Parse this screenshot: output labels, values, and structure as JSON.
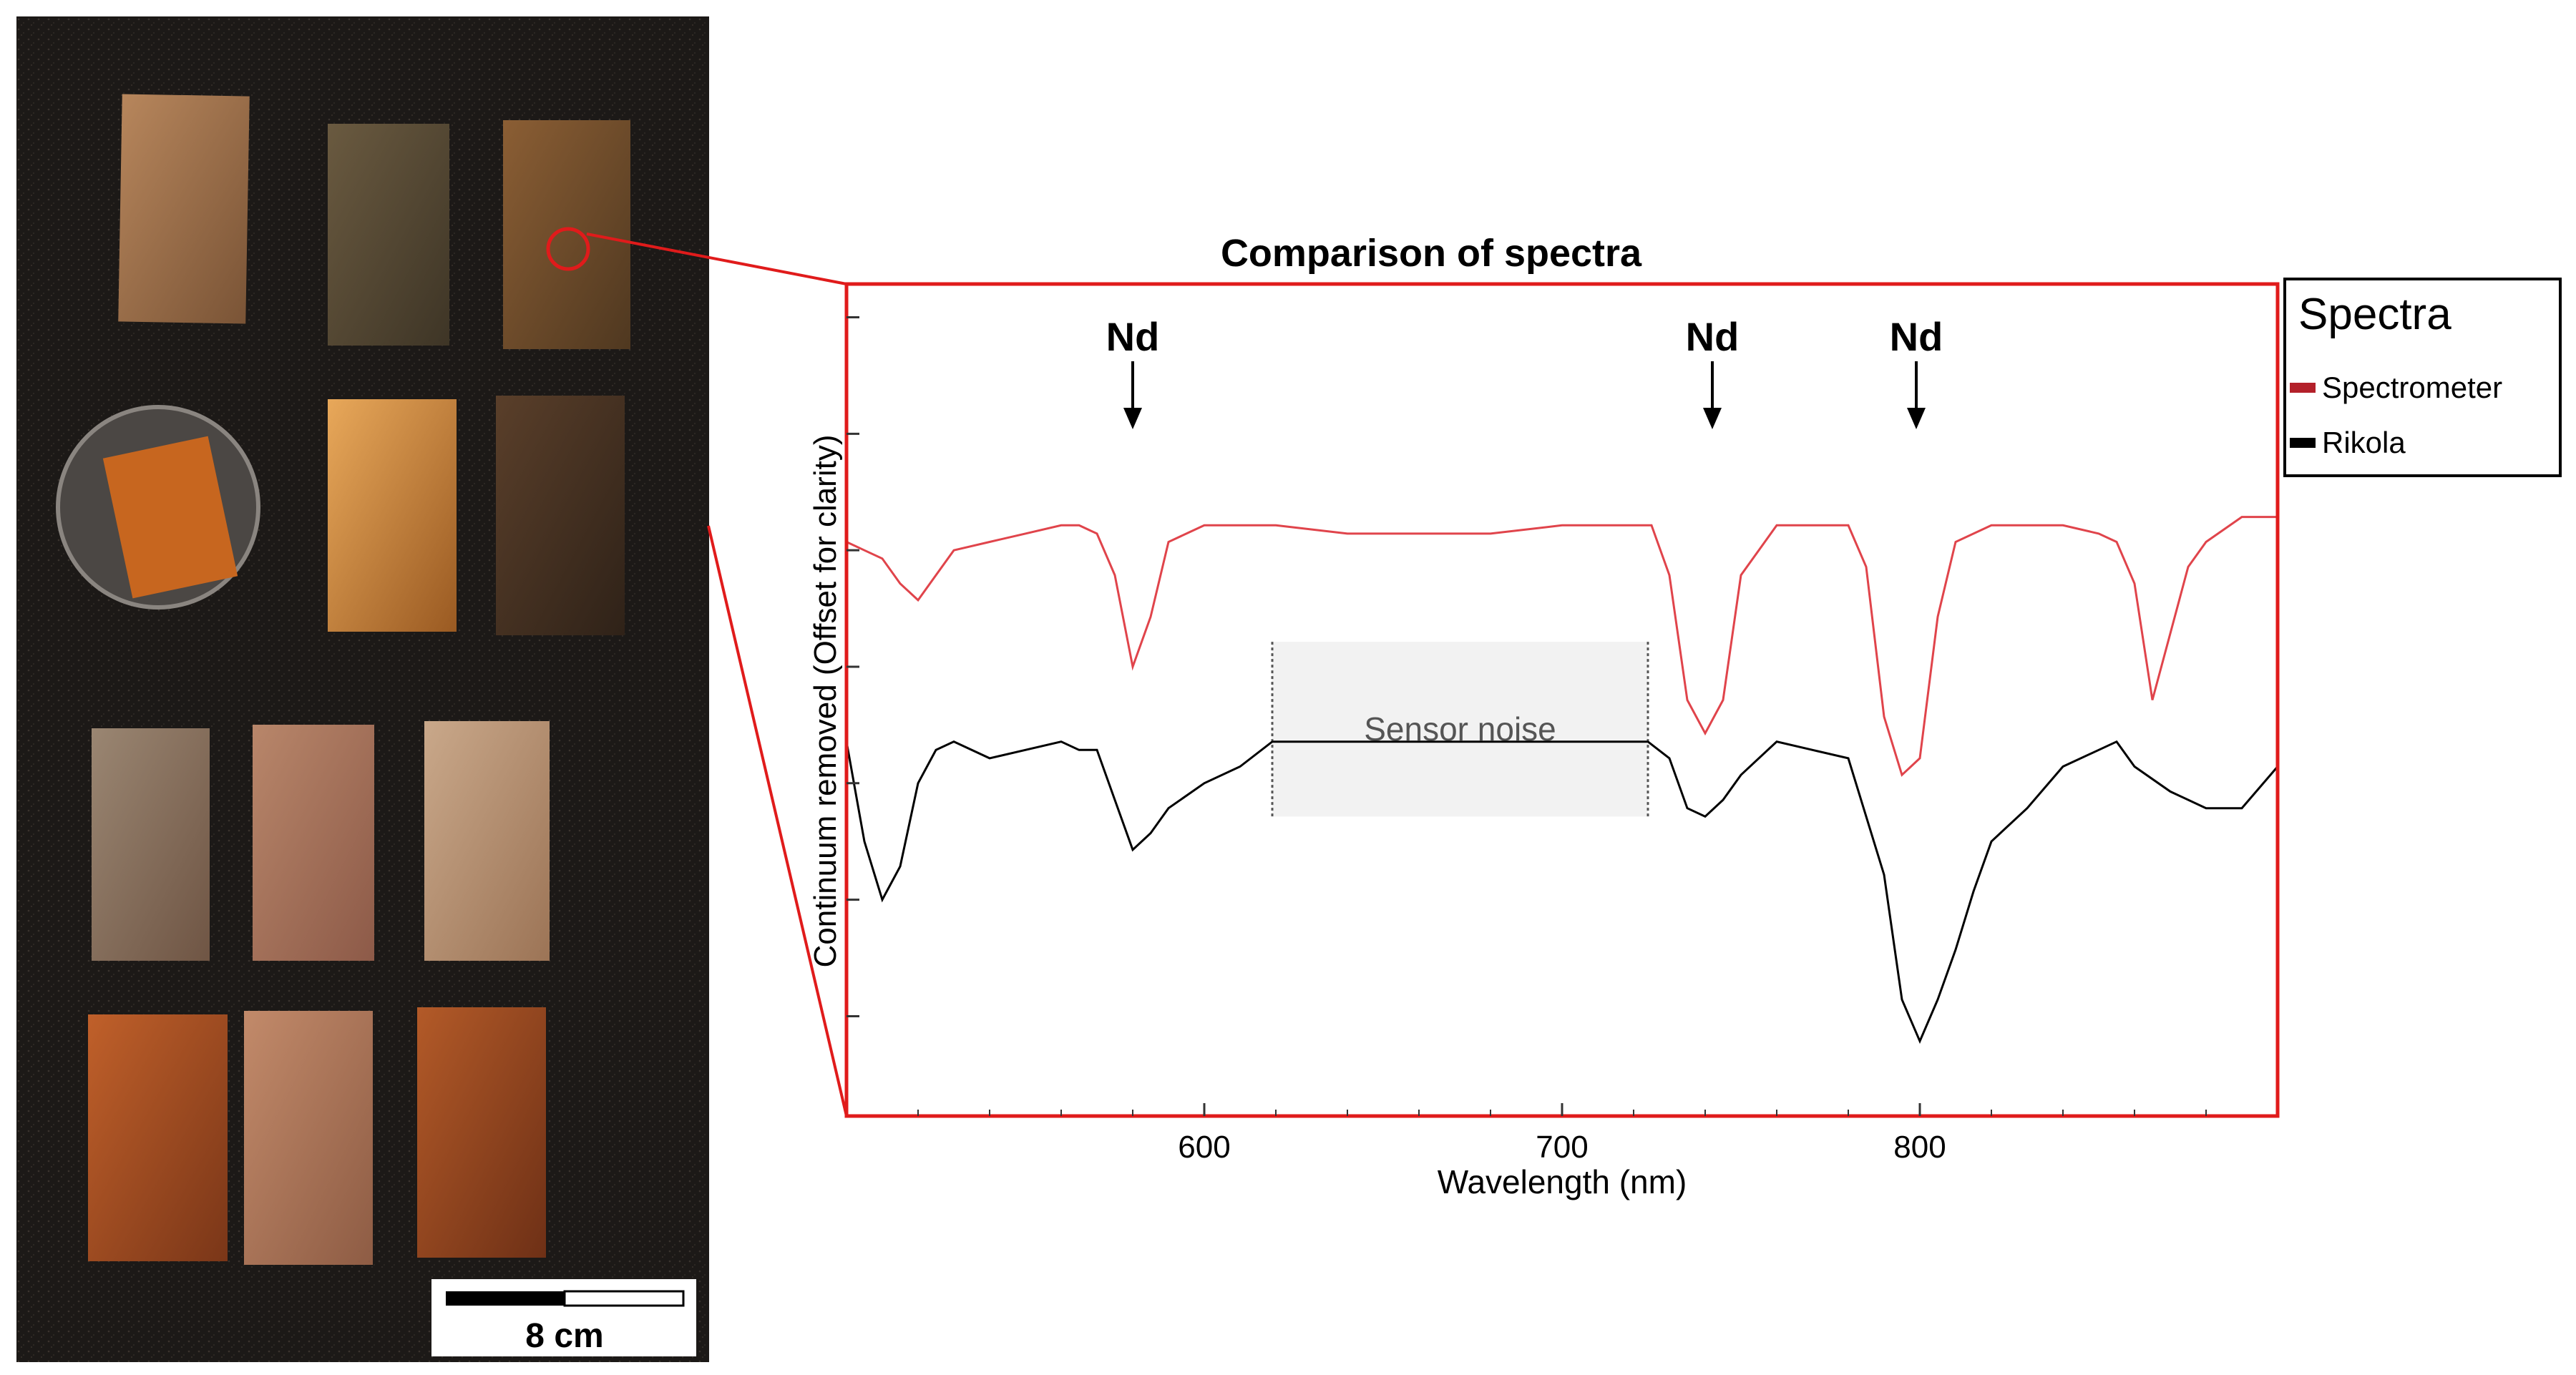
{
  "photo": {
    "scale_bar_label": "8 cm"
  },
  "chart_data": {
    "type": "line",
    "title": "Comparison of spectra",
    "xlabel": "Wavelength (nm)",
    "ylabel": "Continuum removed (Offset for clarity)",
    "xlim": [
      500,
      900
    ],
    "ylim": [
      0,
      1
    ],
    "xticks": [
      600,
      700,
      800
    ],
    "grid": false,
    "legend": {
      "title": "Spectra",
      "placement": "right",
      "entries": [
        {
          "label": "Spectrometer",
          "color": "#b3202a"
        },
        {
          "label": "Rikola",
          "color": "#000000"
        }
      ]
    },
    "annotations": [
      {
        "text": "Nd",
        "x": 580
      },
      {
        "text": "Nd",
        "x": 742
      },
      {
        "text": "Nd",
        "x": 799
      }
    ],
    "noise_box": {
      "label": "Sensor noise",
      "x_start": 619,
      "x_end": 724
    },
    "series": [
      {
        "name": "Spectrometer",
        "color": "#e0444b",
        "x": [
          500,
          505,
          510,
          515,
          520,
          525,
          530,
          540,
          550,
          560,
          565,
          570,
          575,
          580,
          585,
          590,
          595,
          600,
          620,
          640,
          660,
          680,
          700,
          720,
          725,
          730,
          735,
          740,
          745,
          750,
          760,
          770,
          780,
          785,
          790,
          795,
          800,
          805,
          810,
          820,
          830,
          840,
          850,
          855,
          860,
          865,
          870,
          875,
          880,
          890,
          900
        ],
        "y": [
          0.69,
          0.68,
          0.67,
          0.64,
          0.62,
          0.65,
          0.68,
          0.69,
          0.7,
          0.71,
          0.71,
          0.7,
          0.65,
          0.54,
          0.6,
          0.69,
          0.7,
          0.71,
          0.71,
          0.7,
          0.7,
          0.7,
          0.71,
          0.71,
          0.71,
          0.65,
          0.5,
          0.46,
          0.5,
          0.65,
          0.71,
          0.71,
          0.71,
          0.66,
          0.48,
          0.41,
          0.43,
          0.6,
          0.69,
          0.71,
          0.71,
          0.71,
          0.7,
          0.69,
          0.64,
          0.5,
          0.58,
          0.66,
          0.69,
          0.72,
          0.72
        ]
      },
      {
        "name": "Rikola",
        "color": "#000000",
        "x": [
          500,
          505,
          510,
          515,
          520,
          525,
          530,
          540,
          550,
          560,
          565,
          570,
          575,
          580,
          585,
          590,
          600,
          610,
          619,
          724,
          730,
          735,
          740,
          745,
          750,
          760,
          770,
          780,
          790,
          795,
          800,
          805,
          810,
          815,
          820,
          830,
          840,
          850,
          855,
          860,
          870,
          880,
          890,
          900
        ],
        "y": [
          0.45,
          0.33,
          0.26,
          0.3,
          0.4,
          0.44,
          0.45,
          0.43,
          0.44,
          0.45,
          0.44,
          0.44,
          0.38,
          0.32,
          0.34,
          0.37,
          0.4,
          0.42,
          0.45,
          0.45,
          0.43,
          0.37,
          0.36,
          0.38,
          0.41,
          0.45,
          0.44,
          0.43,
          0.29,
          0.14,
          0.09,
          0.14,
          0.2,
          0.27,
          0.33,
          0.37,
          0.42,
          0.44,
          0.45,
          0.42,
          0.39,
          0.37,
          0.37,
          0.42
        ]
      }
    ]
  }
}
